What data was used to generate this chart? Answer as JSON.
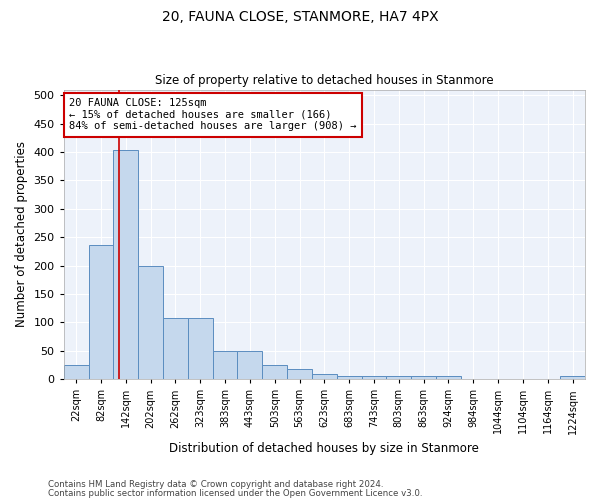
{
  "title": "20, FAUNA CLOSE, STANMORE, HA7 4PX",
  "subtitle": "Size of property relative to detached houses in Stanmore",
  "xlabel": "Distribution of detached houses by size in Stanmore",
  "ylabel": "Number of detached properties",
  "bar_color": "#c5d8ed",
  "bar_edge_color": "#5b8dc0",
  "background_color": "#edf2fa",
  "grid_color": "#ffffff",
  "categories": [
    "22sqm",
    "82sqm",
    "142sqm",
    "202sqm",
    "262sqm",
    "323sqm",
    "383sqm",
    "443sqm",
    "503sqm",
    "563sqm",
    "623sqm",
    "683sqm",
    "743sqm",
    "803sqm",
    "863sqm",
    "924sqm",
    "984sqm",
    "1044sqm",
    "1104sqm",
    "1164sqm",
    "1224sqm"
  ],
  "values": [
    25,
    237,
    403,
    200,
    107,
    107,
    50,
    50,
    25,
    17,
    9,
    5,
    5,
    5,
    5,
    5,
    0,
    0,
    0,
    0,
    5
  ],
  "ylim": [
    0,
    510
  ],
  "yticks": [
    0,
    50,
    100,
    150,
    200,
    250,
    300,
    350,
    400,
    450,
    500
  ],
  "property_line_index": 1.72,
  "annotation_title": "20 FAUNA CLOSE: 125sqm",
  "annotation_line1": "← 15% of detached houses are smaller (166)",
  "annotation_line2": "84% of semi-detached houses are larger (908) →",
  "annotation_box_color": "#ffffff",
  "annotation_border_color": "#cc0000",
  "footer_line1": "Contains HM Land Registry data © Crown copyright and database right 2024.",
  "footer_line2": "Contains public sector information licensed under the Open Government Licence v3.0.",
  "property_line_color": "#cc0000",
  "figsize": [
    6.0,
    5.0
  ],
  "dpi": 100
}
